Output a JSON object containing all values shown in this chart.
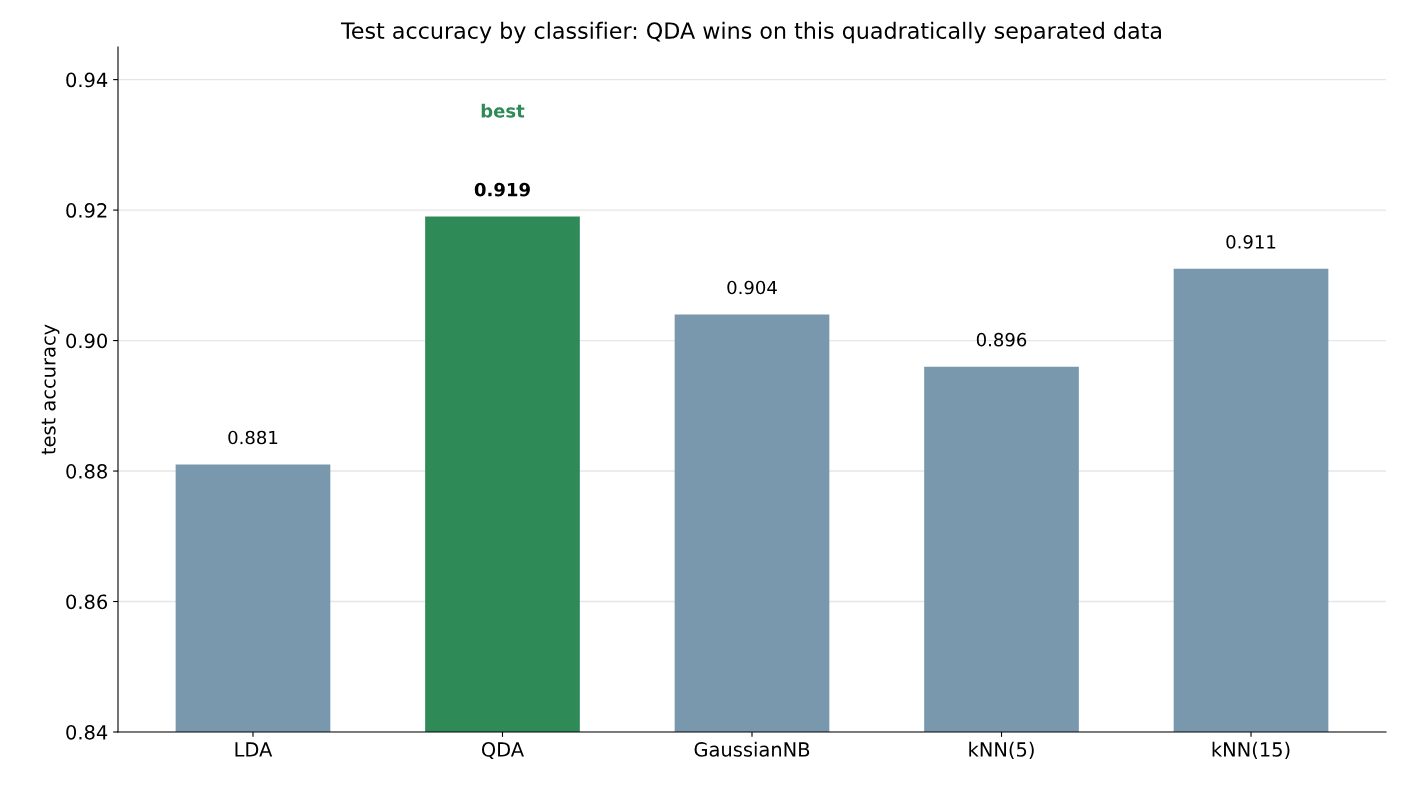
{
  "chart_data": {
    "type": "bar",
    "title": "Test accuracy by classifier: QDA wins on this quadratically separated data",
    "ylabel": "test accuracy",
    "categories": [
      "LDA",
      "QDA",
      "GaussianNB",
      "kNN(5)",
      "kNN(15)"
    ],
    "values": [
      0.881,
      0.919,
      0.904,
      0.896,
      0.911
    ],
    "colors": [
      "#7a98ad",
      "#2e8b57",
      "#7a98ad",
      "#7a98ad",
      "#7a98ad"
    ],
    "ylim": [
      0.84,
      0.945
    ],
    "yticks": [
      0.84,
      0.86,
      0.88,
      {
        "value": 0.9,
        "label": "0.90"
      },
      0.92,
      0.94
    ],
    "data_labels": true,
    "grid": "y",
    "annotations": [
      "best"
    ]
  }
}
